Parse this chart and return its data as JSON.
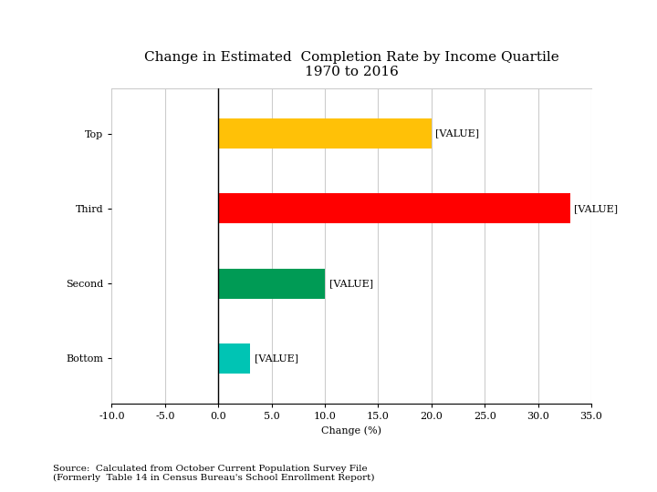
{
  "title_line1": "Change in Estimated  Completion Rate by Income Quartile",
  "title_line2": "1970 to 2016",
  "categories": [
    "Bottom",
    "Second",
    "Third",
    "Top"
  ],
  "values": [
    3.0,
    10.0,
    33.0,
    20.0
  ],
  "colors": [
    "#00C4B4",
    "#009B55",
    "#FF0000",
    "#FFC107"
  ],
  "xlabel": "Change (%)",
  "xlim": [
    -10.0,
    35.0
  ],
  "xticks": [
    -10.0,
    -5.0,
    0.0,
    5.0,
    10.0,
    15.0,
    20.0,
    25.0,
    30.0,
    35.0
  ],
  "bar_height": 0.4,
  "source_line1": "Source:  Calculated from October Current Population Survey File",
  "source_line2": "(Formerly  Table 14 in Census Bureau's School Enrollment Report)",
  "background_color": "#ffffff",
  "label_text": "[VALUE]",
  "title_fontsize": 11,
  "axis_fontsize": 8,
  "tick_fontsize": 8,
  "source_fontsize": 7.5
}
